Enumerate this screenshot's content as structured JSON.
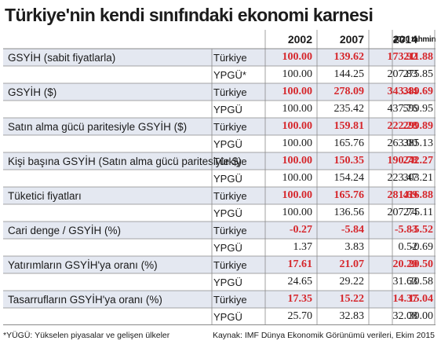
{
  "title": "Türkiye'nin kendi sınıfındaki ekonomi karnesi",
  "columns": [
    "2002",
    "2007",
    "2014",
    "2020 tahmin"
  ],
  "rows": [
    {
      "label": "GSYİH (sabit fiyatlarla)",
      "t": [
        "100.00",
        "139.62",
        "173.92",
        "211.88"
      ],
      "y_label": "YPGÜ*",
      "y": [
        "100.00",
        "144.25",
        "207.83",
        "275.85"
      ]
    },
    {
      "label": "GSYİH ($)",
      "t": [
        "100.00",
        "278.09",
        "343.44",
        "389.69"
      ],
      "y_label": "YPGÜ",
      "y": [
        "100.00",
        "235.42",
        "437.76",
        "599.95"
      ]
    },
    {
      "label": "Satın alma gücü paritesiyle GSYİH ($)",
      "t": [
        "100.00",
        "159.81",
        "222.28",
        "299.89"
      ],
      "y_label": "YPGÜ",
      "y": [
        "100.00",
        "165.76",
        "263.00",
        "385.13"
      ]
    },
    {
      "label": "Kişi başına GSYİH (Satın alma gücü paritesiyle $)",
      "t": [
        "100.00",
        "150.35",
        "190.78",
        "242.27"
      ],
      "y_label": "YPGÜ",
      "y": [
        "100.00",
        "154.24",
        "223.47",
        "303.21"
      ]
    },
    {
      "label": "Tüketici fiyatları",
      "t": [
        "100.00",
        "165.76",
        "281.69",
        "416.88"
      ],
      "y_label": "YPGÜ",
      "y": [
        "100.00",
        "136.56",
        "207.74",
        "275.11"
      ]
    },
    {
      "label": "Cari denge / GSYİH (%)",
      "t": [
        "-0.27",
        "-5.84",
        "-5.83",
        "-5.52"
      ],
      "y_label": "YPGÜ",
      "y": [
        "1.37",
        "3.83",
        "0.52",
        "-0.69"
      ]
    },
    {
      "label": "Yatırımların GSYİH'ya oranı (%)",
      "t": [
        "17.61",
        "21.07",
        "20.20",
        "20.50"
      ],
      "y_label": "YPGÜ",
      "y": [
        "24.65",
        "29.22",
        "31.63",
        "30.58"
      ]
    },
    {
      "label": "Tasarrufların GSYİH'ya oranı (%)",
      "t": [
        "17.35",
        "15.22",
        "14.37",
        "15.04"
      ],
      "y_label": "YPGÜ",
      "y": [
        "25.70",
        "32.83",
        "32.08",
        "30.00"
      ]
    }
  ],
  "country_label": "Türkiye",
  "footer_left": "*YÜGÜ: Yükselen piyasalar ve gelişen ülkeler",
  "footer_right": "Kaynak: IMF Dünya Ekonomik Görünümü verileri, Ekim 2015",
  "colors": {
    "accent_red": "#d6262b",
    "band": "#e4e8f1"
  }
}
